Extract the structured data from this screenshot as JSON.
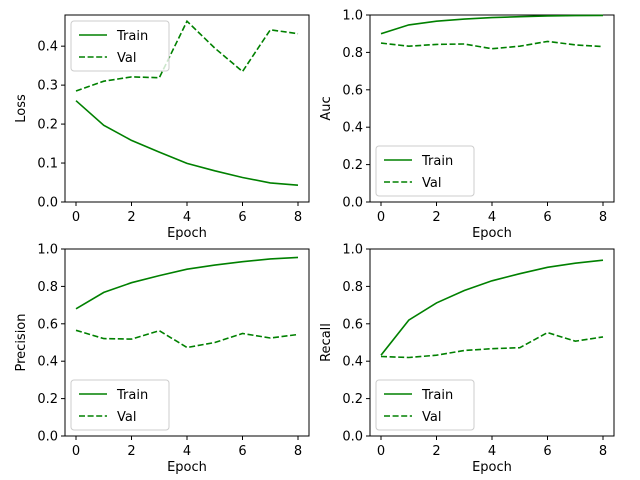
{
  "chart_data": [
    {
      "type": "line",
      "ylabel": "Loss",
      "xlabel": "Epoch",
      "xlim": [
        0,
        8
      ],
      "ylim": [
        0,
        0.48
      ],
      "xticks": [
        "0",
        "2",
        "4",
        "6",
        "8"
      ],
      "yticks": [
        "0.0",
        "0.1",
        "0.2",
        "0.3",
        "0.4"
      ],
      "x": [
        0,
        1,
        2,
        3,
        4,
        5,
        6,
        7,
        8
      ],
      "legend": "upper-left",
      "grid": false,
      "series": [
        {
          "name": "Train",
          "style": "solid",
          "color": "#008000",
          "values": [
            0.26,
            0.197,
            0.158,
            0.128,
            0.099,
            0.08,
            0.063,
            0.049,
            0.043
          ]
        },
        {
          "name": "Val",
          "style": "dashed",
          "color": "#008000",
          "values": [
            0.285,
            0.31,
            0.321,
            0.319,
            0.464,
            0.395,
            0.335,
            0.442,
            0.432
          ]
        }
      ]
    },
    {
      "type": "line",
      "ylabel": "Auc",
      "xlabel": "Epoch",
      "xlim": [
        0,
        8
      ],
      "ylim": [
        0,
        1
      ],
      "xticks": [
        "0",
        "2",
        "4",
        "6",
        "8"
      ],
      "yticks": [
        "0.0",
        "0.2",
        "0.4",
        "0.6",
        "0.8",
        "1.0"
      ],
      "x": [
        0,
        1,
        2,
        3,
        4,
        5,
        6,
        7,
        8
      ],
      "legend": "lower-left",
      "grid": false,
      "series": [
        {
          "name": "Train",
          "style": "solid",
          "color": "#008000",
          "values": [
            0.9,
            0.947,
            0.967,
            0.978,
            0.986,
            0.991,
            0.995,
            0.997,
            0.998
          ]
        },
        {
          "name": "Val",
          "style": "dashed",
          "color": "#008000",
          "values": [
            0.85,
            0.833,
            0.843,
            0.845,
            0.82,
            0.833,
            0.859,
            0.84,
            0.831
          ]
        }
      ]
    },
    {
      "type": "line",
      "ylabel": "Precision",
      "xlabel": "Epoch",
      "xlim": [
        0,
        8
      ],
      "ylim": [
        0,
        1
      ],
      "xticks": [
        "0",
        "2",
        "4",
        "6",
        "8"
      ],
      "yticks": [
        "0.0",
        "0.2",
        "0.4",
        "0.6",
        "0.8",
        "1.0"
      ],
      "x": [
        0,
        1,
        2,
        3,
        4,
        5,
        6,
        7,
        8
      ],
      "legend": "lower-left",
      "grid": false,
      "series": [
        {
          "name": "Train",
          "style": "solid",
          "color": "#008000",
          "values": [
            0.68,
            0.768,
            0.82,
            0.858,
            0.892,
            0.914,
            0.932,
            0.947,
            0.955
          ]
        },
        {
          "name": "Val",
          "style": "dashed",
          "color": "#008000",
          "values": [
            0.565,
            0.521,
            0.518,
            0.563,
            0.473,
            0.5,
            0.548,
            0.524,
            0.543
          ]
        }
      ]
    },
    {
      "type": "line",
      "ylabel": "Recall",
      "xlabel": "Epoch",
      "xlim": [
        0,
        8
      ],
      "ylim": [
        0,
        1
      ],
      "xticks": [
        "0",
        "2",
        "4",
        "6",
        "8"
      ],
      "yticks": [
        "0.0",
        "0.2",
        "0.4",
        "0.6",
        "0.8",
        "1.0"
      ],
      "x": [
        0,
        1,
        2,
        3,
        4,
        5,
        6,
        7,
        8
      ],
      "legend": "lower-right",
      "grid": false,
      "series": [
        {
          "name": "Train",
          "style": "solid",
          "color": "#008000",
          "values": [
            0.432,
            0.62,
            0.712,
            0.778,
            0.83,
            0.868,
            0.902,
            0.924,
            0.94
          ]
        },
        {
          "name": "Val",
          "style": "dashed",
          "color": "#008000",
          "values": [
            0.425,
            0.42,
            0.432,
            0.457,
            0.467,
            0.472,
            0.553,
            0.507,
            0.53
          ]
        }
      ]
    }
  ]
}
